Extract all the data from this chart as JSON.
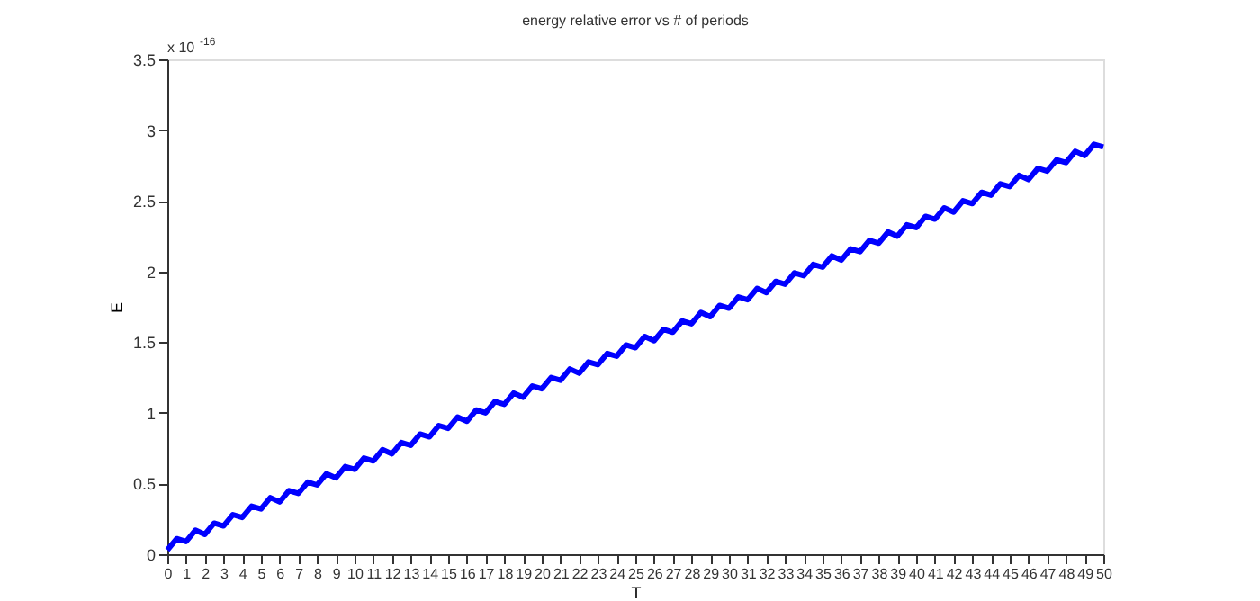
{
  "chart_data": {
    "type": "line",
    "title": "energy relative error vs # of periods",
    "xlabel": "T",
    "ylabel": "E",
    "annotations": [
      "x 10$^{-16}$"
    ],
    "xlim": [
      0,
      50
    ],
    "xticks": [
      0,
      1,
      2,
      3,
      4,
      5,
      6,
      7,
      8,
      9,
      10,
      11,
      12,
      13,
      14,
      15,
      16,
      17,
      18,
      19,
      20,
      21,
      22,
      23,
      24,
      25,
      26,
      27,
      28,
      29,
      30,
      31,
      32,
      33,
      34,
      35,
      36,
      37,
      38,
      39,
      40,
      41,
      42,
      43,
      44,
      45,
      46,
      47,
      48,
      49,
      50
    ],
    "ylim": [
      0,
      3.5
    ],
    "yticks": [
      0,
      0.5,
      1,
      1.5,
      2,
      2.5,
      3,
      3.5
    ],
    "grid": false,
    "marker": "none",
    "line_style": "solid",
    "x": [
      0,
      0.5,
      1,
      1.5,
      2,
      2.5,
      3,
      3.5,
      4,
      4.5,
      5,
      5.5,
      6,
      6.5,
      7,
      7.5,
      8,
      8.5,
      9,
      9.5,
      10,
      10.5,
      11,
      11.5,
      12,
      12.5,
      13,
      13.5,
      14,
      14.5,
      15,
      15.5,
      16,
      16.5,
      17,
      17.5,
      18,
      18.5,
      19,
      19.5,
      20,
      20.5,
      21,
      21.5,
      22,
      22.5,
      23,
      23.5,
      24,
      24.5,
      25,
      25.5,
      26,
      26.5,
      27,
      27.5,
      28,
      28.5,
      29,
      29.5,
      30,
      30.5,
      31,
      31.5,
      32,
      32.5,
      33,
      33.5,
      34,
      34.5,
      35,
      35.5,
      36,
      36.5,
      37,
      37.5,
      38,
      38.5,
      39,
      39.5,
      40,
      40.5,
      41,
      41.5,
      42,
      42.5,
      43,
      43.5,
      44,
      44.5,
      45,
      45.5,
      46,
      46.5,
      47,
      47.5,
      48,
      48.5,
      49,
      49.5,
      50
    ],
    "series": [
      {
        "color": "#0000ff",
        "values": [
          0.03,
          0.11,
          0.09,
          0.17,
          0.14,
          0.22,
          0.2,
          0.28,
          0.26,
          0.34,
          0.32,
          0.4,
          0.37,
          0.45,
          0.43,
          0.51,
          0.49,
          0.57,
          0.54,
          0.62,
          0.6,
          0.68,
          0.66,
          0.74,
          0.71,
          0.79,
          0.77,
          0.85,
          0.83,
          0.91,
          0.89,
          0.97,
          0.94,
          1.02,
          1.0,
          1.08,
          1.06,
          1.14,
          1.11,
          1.19,
          1.17,
          1.25,
          1.23,
          1.31,
          1.28,
          1.36,
          1.34,
          1.42,
          1.4,
          1.48,
          1.46,
          1.54,
          1.51,
          1.59,
          1.57,
          1.65,
          1.63,
          1.71,
          1.68,
          1.76,
          1.74,
          1.82,
          1.8,
          1.88,
          1.85,
          1.93,
          1.91,
          1.99,
          1.97,
          2.05,
          2.03,
          2.11,
          2.08,
          2.16,
          2.14,
          2.22,
          2.2,
          2.28,
          2.25,
          2.33,
          2.31,
          2.39,
          2.37,
          2.45,
          2.42,
          2.5,
          2.48,
          2.56,
          2.54,
          2.62,
          2.6,
          2.68,
          2.65,
          2.73,
          2.71,
          2.79,
          2.77,
          2.85,
          2.82,
          2.9,
          2.88
        ]
      }
    ]
  }
}
